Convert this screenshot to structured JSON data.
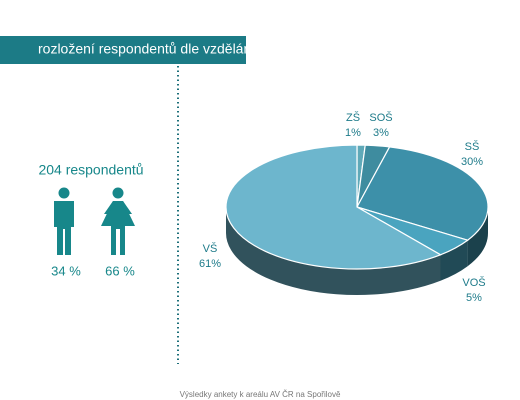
{
  "header": {
    "title": "rozložení respondentů dle vzdělání"
  },
  "footer": "Výsledky ankety k areálu AV ČR na Spořilově",
  "chart_data": [
    {
      "type": "pie",
      "categories": [
        "ZŠ",
        "SOŠ",
        "SŠ",
        "VOŠ",
        "VŠ"
      ],
      "values": [
        1,
        3,
        30,
        5,
        61
      ],
      "value_labels": [
        "1%",
        "3%",
        "30%",
        "5%",
        "61%"
      ],
      "colors": [
        "#5fa9b8",
        "#3e8c9f",
        "#3d90a9",
        "#4aa4bf",
        "#6db6cd"
      ]
    },
    {
      "type": "icon",
      "title": "204 respondentů",
      "values": [
        34,
        66
      ],
      "value_labels": [
        "34 %",
        "66 %"
      ],
      "color": "#17878a"
    }
  ]
}
